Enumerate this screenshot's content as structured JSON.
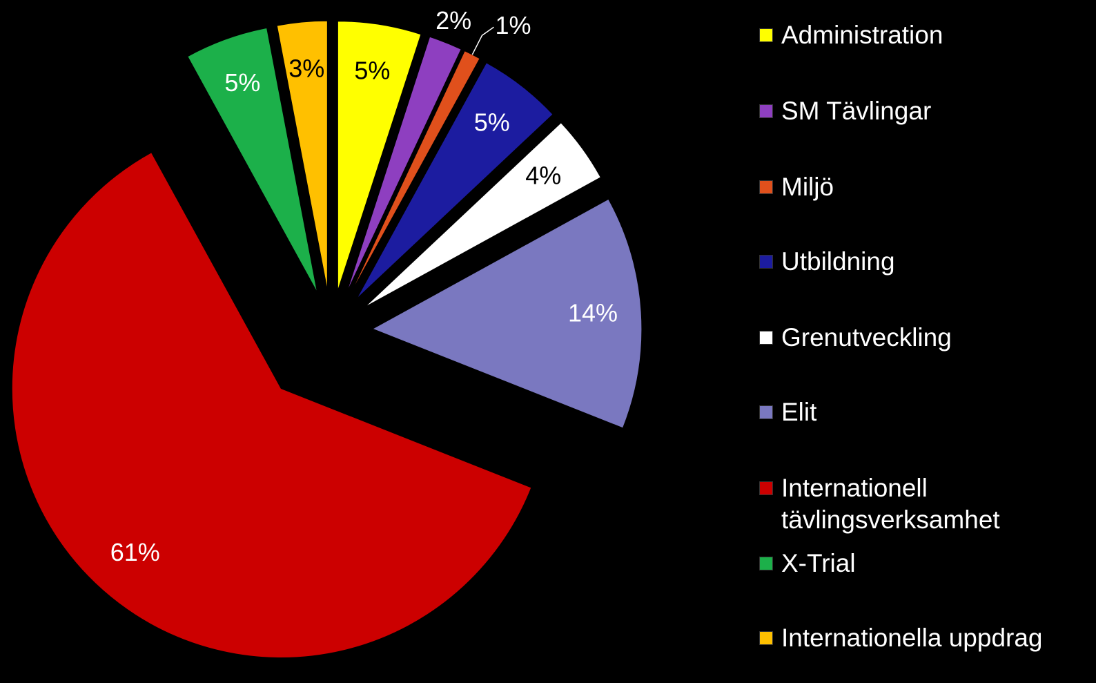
{
  "chart_data": {
    "type": "pie",
    "series": [
      {
        "name": "Administration",
        "color": "#ffff00",
        "values": [
          5
        ],
        "value_labels": [
          "5%"
        ]
      },
      {
        "name": "SM Tävlingar",
        "color": "#8e3fc0",
        "values": [
          2
        ],
        "value_labels": [
          "2%"
        ]
      },
      {
        "name": "Miljö",
        "color": "#e0501c",
        "values": [
          1
        ],
        "value_labels": [
          "1%"
        ]
      },
      {
        "name": "Utbildning",
        "color": "#1c1ca0",
        "values": [
          5
        ],
        "value_labels": [
          "5%"
        ]
      },
      {
        "name": "Grenutveckling",
        "color": "#ffffff",
        "values": [
          4
        ],
        "value_labels": [
          "4%"
        ]
      },
      {
        "name": "Elit",
        "color": "#7a78c0",
        "values": [
          14
        ],
        "value_labels": [
          "14%"
        ]
      },
      {
        "name": "Internationell tävlingsverksamhet",
        "color": "#cc0000",
        "values": [
          61
        ],
        "value_labels": [
          "61%"
        ]
      },
      {
        "name": "X-Trial",
        "color": "#1cb04a",
        "values": [
          5
        ],
        "value_labels": [
          "5%"
        ]
      },
      {
        "name": "Internationella uppdrag",
        "color": "#ffc000",
        "values": [
          3
        ],
        "value_labels": [
          "3%"
        ]
      }
    ],
    "legend": "right"
  }
}
